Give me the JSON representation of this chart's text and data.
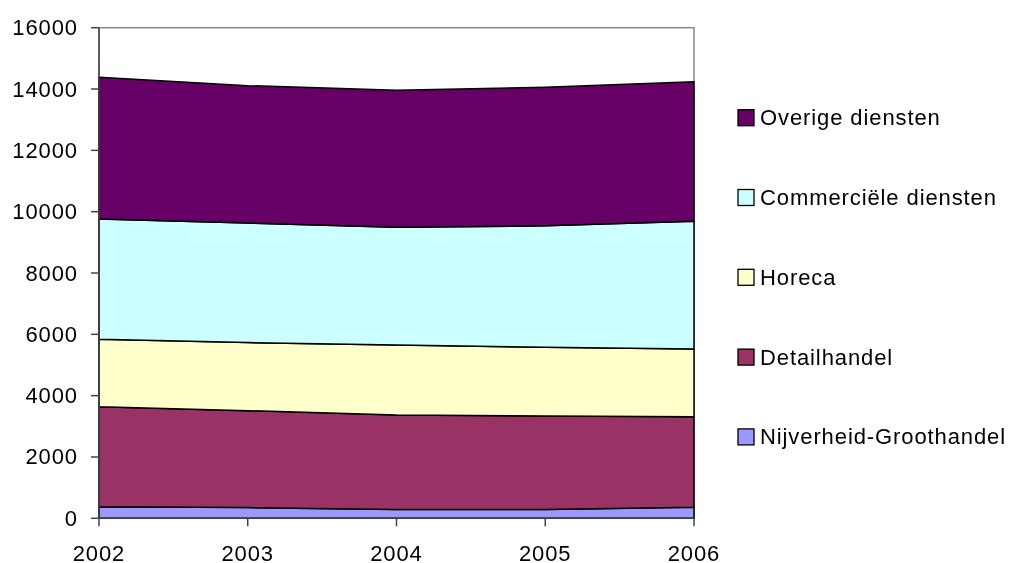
{
  "chart_data": {
    "type": "area",
    "stacked": true,
    "categories": [
      "2002",
      "2003",
      "2004",
      "2005",
      "2006"
    ],
    "ylim": [
      0,
      16000
    ],
    "yticks": [
      0,
      2000,
      4000,
      6000,
      8000,
      10000,
      12000,
      14000,
      16000
    ],
    "grid": false,
    "legend": "right",
    "series": [
      {
        "name": "Nijverheid-Groothandel",
        "color": "#9999ff",
        "values": [
          380,
          350,
          290,
          290,
          360
        ]
      },
      {
        "name": "Detailhandel",
        "color": "#993366",
        "values": [
          3260,
          3160,
          3080,
          3050,
          2950
        ]
      },
      {
        "name": "Horeca",
        "color": "#ffffcc",
        "values": [
          2200,
          2220,
          2280,
          2240,
          2210
        ]
      },
      {
        "name": "Commerciële diensten",
        "color": "#ccffff",
        "values": [
          3920,
          3900,
          3840,
          3960,
          4170
        ]
      },
      {
        "name": "Overige diensten",
        "color": "#660066",
        "values": [
          4620,
          4480,
          4470,
          4520,
          4550
        ]
      }
    ]
  }
}
